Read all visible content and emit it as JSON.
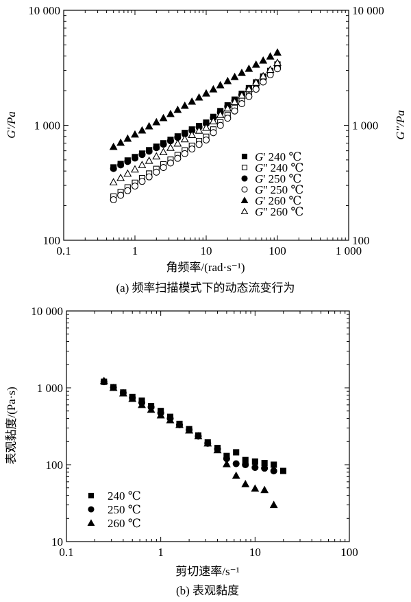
{
  "chart_data": [
    {
      "type": "scatter",
      "title": "(a) 频率扫描模式下的动态流变行为",
      "xlabel": "角频率/(rad·s⁻¹)",
      "ylabel": "G'/Pa",
      "ylabel_right": "G''/Pa",
      "xscale": "log",
      "yscale": "log",
      "xlim": [
        0.1,
        1000
      ],
      "ylim": [
        100,
        10000
      ],
      "xticks": [
        "0.1",
        "1",
        "10",
        "100",
        "1 000"
      ],
      "yticks": [
        "100",
        "1 000",
        "10 000"
      ],
      "legend_position": "lower-right",
      "x": [
        0.5,
        0.63,
        0.79,
        1,
        1.26,
        1.58,
        2,
        2.51,
        3.16,
        3.98,
        5.01,
        6.31,
        7.94,
        10,
        12.6,
        15.8,
        20,
        25.1,
        31.6,
        39.8,
        50.1,
        63.1,
        79.4,
        100
      ],
      "series": [
        {
          "name": "G' 240 ℃",
          "prefix": "G'",
          "temp": "240 ℃",
          "marker": "square-filled",
          "values": [
            430,
            461,
            494,
            529,
            567,
            607,
            651,
            697,
            747,
            800,
            857,
            919,
            984,
            1055,
            1183,
            1328,
            1490,
            1671,
            1875,
            2104,
            2361,
            2649,
            2972,
            3335
          ]
        },
        {
          "name": "G'' 240 ℃",
          "prefix": "G''",
          "temp": "240 ℃",
          "marker": "square-open",
          "values": [
            240,
            262,
            288,
            316,
            347,
            380,
            417,
            457,
            502,
            551,
            604,
            663,
            727,
            794,
            918,
            1060,
            1225,
            1416,
            1637,
            1892,
            2187,
            2528,
            2922,
            3378
          ]
        },
        {
          "name": "G' 250 ℃",
          "prefix": "G'",
          "temp": "250 ℃",
          "marker": "circle-filled",
          "values": [
            420,
            452,
            484,
            518,
            556,
            595,
            638,
            683,
            732,
            784,
            840,
            900,
            964,
            1034,
            1160,
            1300,
            1460,
            1640,
            1840,
            2060,
            2310,
            2600,
            2910,
            3200
          ]
        },
        {
          "name": "G'' 250 ℃",
          "prefix": "G''",
          "temp": "250 ℃",
          "marker": "circle-open",
          "values": [
            225,
            246,
            270,
            296,
            325,
            356,
            391,
            429,
            470,
            516,
            567,
            622,
            682,
            745,
            862,
            997,
            1152,
            1332,
            1540,
            1780,
            2058,
            2379,
            2750,
            3100
          ]
        },
        {
          "name": "G' 260 ℃",
          "prefix": "G'",
          "temp": "260 ℃",
          "marker": "triangle-filled",
          "values": [
            650,
            706,
            766,
            832,
            903,
            981,
            1065,
            1156,
            1255,
            1363,
            1480,
            1607,
            1745,
            1894,
            2057,
            2233,
            2425,
            2633,
            2859,
            3104,
            3370,
            3659,
            3973,
            4300
          ]
        },
        {
          "name": "G'' 260 ℃",
          "prefix": "G''",
          "temp": "260 ℃",
          "marker": "triangle-open",
          "values": [
            320,
            349,
            380,
            414,
            452,
            492,
            537,
            585,
            638,
            695,
            758,
            826,
            900,
            954,
            1085,
            1235,
            1405,
            1598,
            1818,
            2068,
            2353,
            2677,
            3045,
            3500
          ]
        }
      ]
    },
    {
      "type": "scatter",
      "title": "(b) 表观黏度",
      "xlabel": "剪切速率/s⁻¹",
      "ylabel": "表观黏度/(Pa·s)",
      "xscale": "log",
      "yscale": "log",
      "xlim": [
        0.1,
        100
      ],
      "ylim": [
        10,
        10000
      ],
      "xticks": [
        "0.1",
        "1",
        "10",
        "100"
      ],
      "yticks": [
        "10",
        "100",
        "1 000",
        "10 000"
      ],
      "legend_position": "lower-left",
      "x": [
        0.25,
        0.315,
        0.4,
        0.5,
        0.63,
        0.79,
        1.0,
        1.26,
        1.58,
        2.0,
        2.5,
        3.15,
        4.0,
        5.0,
        6.3,
        7.9,
        10,
        12.6,
        15.8,
        19.9
      ],
      "series": [
        {
          "name": "240 ℃",
          "marker": "square-filled",
          "values": [
            1200,
            1020,
            870,
            760,
            680,
            580,
            500,
            420,
            340,
            290,
            240,
            195,
            165,
            130,
            145,
            115,
            110,
            105,
            100,
            83
          ]
        },
        {
          "name": "250 ℃",
          "marker": "circle-filled",
          "values": [
            1200,
            1010,
            860,
            740,
            640,
            560,
            470,
            400,
            330,
            285,
            235,
            190,
            160,
            120,
            103,
            100,
            92,
            90,
            83,
            null
          ]
        },
        {
          "name": "260 ℃",
          "marker": "triangle-filled",
          "values": [
            1230,
            1000,
            850,
            720,
            600,
            520,
            440,
            380,
            330,
            280,
            235,
            190,
            155,
            102,
            72,
            56,
            49,
            47,
            30,
            null
          ]
        }
      ]
    }
  ]
}
